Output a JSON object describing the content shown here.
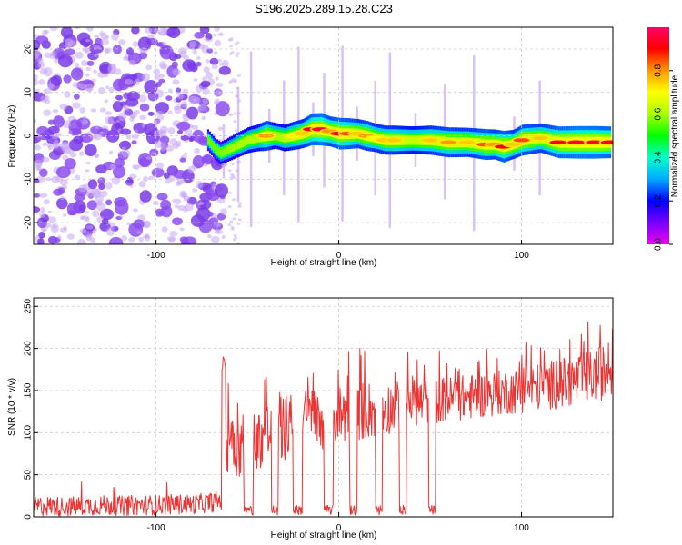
{
  "title": "S196.2025.289.15.28.C23",
  "chart_data": [
    {
      "type": "heatmap",
      "xlabel": "Height of straight line (km)",
      "ylabel": "Frequency (Hz)",
      "xlim": [
        -167,
        150
      ],
      "ylim": [
        -25,
        25
      ],
      "xticks": [
        "-100",
        "0",
        "100"
      ],
      "xtick_values": [
        -100,
        0,
        100
      ],
      "yticks": [
        "20",
        "10",
        "0",
        "-10",
        "-20"
      ],
      "ytick_values": [
        20,
        10,
        0,
        -10,
        -20
      ],
      "colorbar": {
        "label": "Normalized spectral amplitude",
        "range": [
          0,
          1
        ],
        "ticks": [
          "0.0",
          "0.2",
          "0.4",
          "0.6",
          "0.8"
        ],
        "tick_values": [
          0.0,
          0.2,
          0.4,
          0.6,
          0.8
        ],
        "colormap": [
          "#ee00ee",
          "#7700ff",
          "#0000ff",
          "#00aaff",
          "#00ffcc",
          "#00ff00",
          "#aaff00",
          "#ffff00",
          "#ff9900",
          "#ff0000",
          "#ff0066"
        ]
      },
      "noise_region_x": [
        -167,
        -62
      ],
      "ridge": {
        "x": [
          -72,
          -68,
          -65,
          -60,
          -55,
          -50,
          -45,
          -40,
          -35,
          -30,
          -25,
          -20,
          -15,
          -10,
          -5,
          0,
          5,
          10,
          15,
          20,
          25,
          30,
          40,
          50,
          60,
          70,
          80,
          85,
          90,
          95,
          100,
          110,
          120,
          130,
          140,
          148
        ],
        "freq": [
          -1,
          -3,
          -4,
          -3,
          -2,
          -1,
          -0.5,
          0,
          0,
          -0.5,
          0,
          0.5,
          1.5,
          1.5,
          1,
          0.5,
          0.5,
          0.5,
          0,
          -0.5,
          -1,
          -1,
          -1,
          -1,
          -1.5,
          -1.5,
          -2,
          -2,
          -2.5,
          -2,
          -1,
          -0.5,
          -1.5,
          -1.5,
          -1.5,
          -1.5
        ],
        "amp": [
          0.3,
          0.3,
          0.35,
          0.45,
          0.5,
          0.55,
          0.6,
          0.8,
          0.55,
          0.6,
          0.7,
          0.75,
          0.9,
          0.95,
          0.8,
          0.9,
          0.85,
          0.75,
          0.8,
          0.7,
          0.75,
          0.75,
          0.65,
          0.75,
          0.8,
          0.75,
          0.85,
          0.8,
          0.9,
          0.75,
          0.85,
          0.75,
          0.9,
          0.95,
          0.95,
          0.9
        ]
      }
    },
    {
      "type": "line",
      "xlabel": "Height of straight line (km)",
      "ylabel": "SNR (10 * v/v)",
      "xlim": [
        -167,
        150
      ],
      "ylim": [
        0,
        260
      ],
      "xticks": [
        "-100",
        "0",
        "100"
      ],
      "xtick_values": [
        -100,
        0,
        100
      ],
      "yticks": [
        "250",
        "200",
        "150",
        "100",
        "50",
        "0"
      ],
      "ytick_values": [
        250,
        200,
        150,
        100,
        50,
        0
      ],
      "series": [
        {
          "name": "SNR",
          "color": "#ee3333",
          "x": [
            -167,
            -160,
            -150,
            -140,
            -130,
            -120,
            -110,
            -100,
            -90,
            -80,
            -70,
            -64,
            -60,
            -55,
            -50,
            -45,
            -40,
            -35,
            -30,
            -25,
            -20,
            -15,
            -10,
            -5,
            0,
            5,
            10,
            20,
            30,
            40,
            50,
            60,
            70,
            80,
            90,
            100,
            110,
            120,
            130,
            140,
            150
          ],
          "y": [
            12,
            13,
            12,
            13,
            14,
            13,
            14,
            14,
            15,
            15,
            17,
            20,
            105,
            80,
            95,
            90,
            100,
            100,
            105,
            108,
            112,
            115,
            118,
            120,
            122,
            124,
            125,
            128,
            130,
            135,
            138,
            140,
            142,
            145,
            148,
            150,
            155,
            158,
            162,
            168,
            175
          ],
          "spread": [
            12,
            12,
            12,
            12,
            12,
            12,
            12,
            12,
            12,
            12,
            12,
            12,
            45,
            35,
            40,
            35,
            40,
            40,
            40,
            40,
            40,
            38,
            38,
            38,
            36,
            36,
            35,
            35,
            30,
            28,
            28,
            27,
            27,
            27,
            27,
            27,
            28,
            30,
            30,
            32,
            34
          ],
          "dropouts": [
            [
              -52,
              -47
            ],
            [
              -37,
              -33
            ],
            [
              -25,
              -20
            ],
            [
              -8,
              -3
            ],
            [
              6,
              10
            ],
            [
              20,
              24
            ],
            [
              33,
              37
            ],
            [
              49,
              53
            ]
          ]
        }
      ]
    }
  ]
}
